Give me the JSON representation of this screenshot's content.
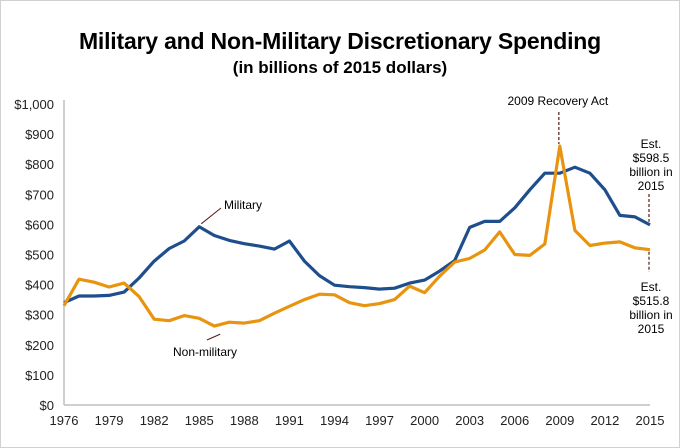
{
  "chart_data": {
    "type": "line",
    "title": "Military and Non-Military Discretionary Spending",
    "subtitle": "(in billions of 2015 dollars)",
    "xlabel": "",
    "ylabel": "",
    "ylim": [
      0,
      1000
    ],
    "xlim": [
      1976,
      2015
    ],
    "grid": false,
    "y_ticks": [
      0,
      100,
      200,
      300,
      400,
      500,
      600,
      700,
      800,
      900,
      1000
    ],
    "y_tick_labels": [
      "$0",
      "$100",
      "$200",
      "$300",
      "$400",
      "$500",
      "$600",
      "$700",
      "$800",
      "$900",
      "$1,000"
    ],
    "x_tick_labels": [
      "1976",
      "1979",
      "1982",
      "1985",
      "1988",
      "1991",
      "1994",
      "1997",
      "2000",
      "2003",
      "2006",
      "2009",
      "2012",
      "2015"
    ],
    "x": [
      1976,
      1977,
      1978,
      1979,
      1980,
      1981,
      1982,
      1983,
      1984,
      1985,
      1986,
      1987,
      1988,
      1989,
      1990,
      1991,
      1992,
      1993,
      1994,
      1995,
      1996,
      1997,
      1998,
      1999,
      2000,
      2001,
      2002,
      2003,
      2004,
      2005,
      2006,
      2007,
      2008,
      2009,
      2010,
      2011,
      2012,
      2013,
      2014,
      2015
    ],
    "series": [
      {
        "name": "Military",
        "color": "#1f4e8c",
        "values": [
          340,
          362,
          362,
          364,
          375,
          422,
          478,
          520,
          545,
          592,
          563,
          547,
          536,
          528,
          518,
          545,
          478,
          430,
          398,
          393,
          390,
          385,
          388,
          405,
          415,
          445,
          480,
          590,
          610,
          610,
          655,
          715,
          770,
          770,
          790,
          770,
          715,
          630,
          625,
          598.5
        ]
      },
      {
        "name": "Non-military",
        "color": "#e8940f",
        "values": [
          330,
          418,
          408,
          392,
          405,
          360,
          285,
          280,
          297,
          288,
          262,
          275,
          272,
          280,
          305,
          328,
          350,
          368,
          366,
          340,
          330,
          337,
          350,
          395,
          373,
          428,
          475,
          487,
          515,
          575,
          500,
          497,
          535,
          860,
          580,
          530,
          538,
          542,
          522,
          515.8
        ]
      }
    ],
    "annotations": [
      {
        "text": "Military",
        "series": "Military",
        "year": 1985
      },
      {
        "text": "Non-military",
        "series": "Non-military",
        "year": 1985
      },
      {
        "text": "2009 Recovery Act",
        "series": "Non-military",
        "year": 2009
      },
      {
        "text_lines": [
          "Est.",
          "$598.5",
          "billion in",
          "2015"
        ],
        "series": "Military",
        "year": 2015
      },
      {
        "text_lines": [
          "Est.",
          "$515.8",
          "billion in",
          "2015"
        ],
        "series": "Non-military",
        "year": 2015
      }
    ]
  }
}
